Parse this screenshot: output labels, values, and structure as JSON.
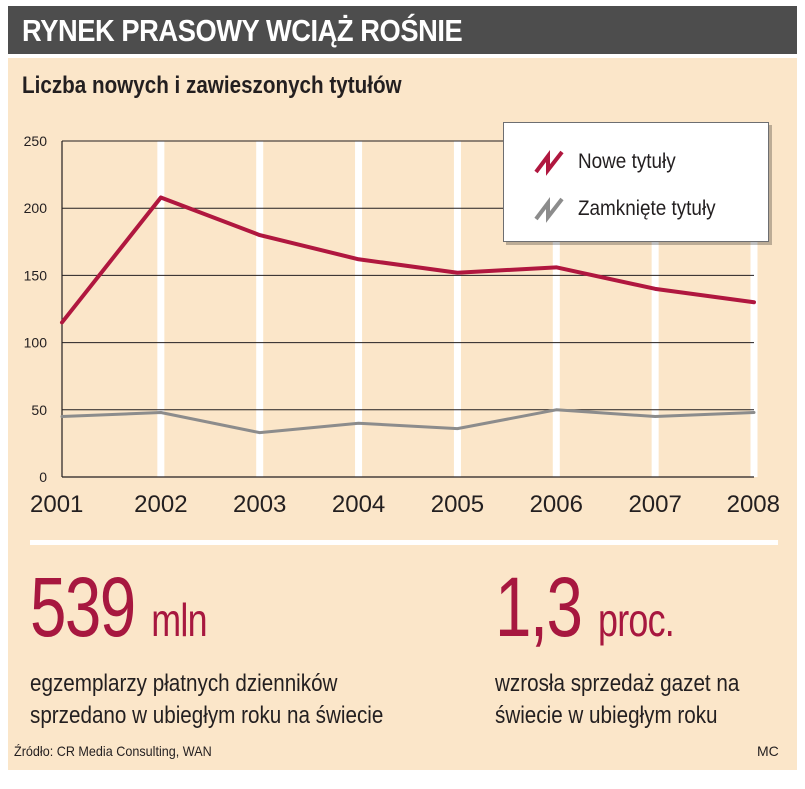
{
  "header": {
    "title": "RYNEK PRASOWY WCIĄŻ ROŚNIE"
  },
  "chart_data": {
    "type": "line",
    "title": "Liczba nowych i zawieszonych tytułów",
    "xlabel": "",
    "ylabel": "",
    "categories": [
      "2001",
      "2002",
      "2003",
      "2004",
      "2005",
      "2006",
      "2007",
      "2008"
    ],
    "ylim": [
      0,
      250
    ],
    "yticks": [
      0,
      50,
      100,
      150,
      200,
      250
    ],
    "grid": true,
    "legend_position": "top-right",
    "series": [
      {
        "name": "Nowe tytuły",
        "color": "#b0173f",
        "values": [
          115,
          208,
          180,
          162,
          152,
          156,
          140,
          130
        ]
      },
      {
        "name": "Zamknięte tytuły",
        "color": "#8c8c8c",
        "values": [
          45,
          48,
          33,
          40,
          36,
          50,
          45,
          48
        ]
      }
    ]
  },
  "stats": [
    {
      "value": "539",
      "unit": "mln",
      "description_line1": "egzemplarzy płatnych dzienników",
      "description_line2": "sprzedano w ubiegłym roku na świecie"
    },
    {
      "value": "1,3",
      "unit": "proc.",
      "description_line1": "wzrosła sprzedaż gazet na",
      "description_line2": "świecie w ubiegłym roku"
    }
  ],
  "footer": {
    "source": "Źródło: CR Media Consulting, WAN",
    "credit": "MC"
  },
  "colors": {
    "accent": "#a7173f",
    "panel_bg": "#fbe6c9",
    "header_bg": "#4d4d4d"
  }
}
